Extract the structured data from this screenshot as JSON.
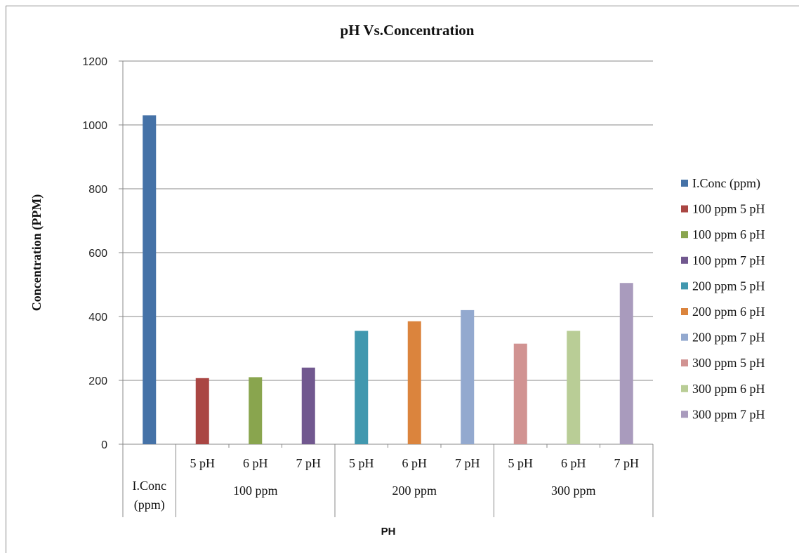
{
  "chart_data": {
    "type": "bar",
    "title": "pH Vs.Concentration",
    "xlabel": "PH",
    "ylabel": "Concentration (PPM)",
    "ylim": [
      0,
      1200
    ],
    "yticks": [
      "0",
      "200",
      "400",
      "600",
      "800",
      "1000",
      "1200"
    ],
    "grid": true,
    "legend_position": "right",
    "groups": [
      {
        "label": "I.Conc\n(ppm)",
        "categories": [
          ""
        ]
      },
      {
        "label": "100 ppm",
        "categories": [
          "5 pH",
          "6 pH",
          "7 pH"
        ]
      },
      {
        "label": "200 ppm",
        "categories": [
          "5 pH",
          "6 pH",
          "7 pH"
        ]
      },
      {
        "label": "300 ppm",
        "categories": [
          "5 pH",
          "6 pH",
          "7 pH"
        ]
      }
    ],
    "series": [
      {
        "name": "I.Conc (ppm)",
        "value": 1030,
        "color": "#4572A7"
      },
      {
        "name": "100 ppm 5 pH",
        "value": 207,
        "color": "#AA4643"
      },
      {
        "name": "100 ppm 6 pH",
        "value": 210,
        "color": "#89A54E"
      },
      {
        "name": "100 ppm 7 pH",
        "value": 240,
        "color": "#71588F"
      },
      {
        "name": "200 ppm 5 pH",
        "value": 355,
        "color": "#4198AF"
      },
      {
        "name": "200 ppm 6 pH",
        "value": 385,
        "color": "#DB843D"
      },
      {
        "name": "200 ppm 7 pH",
        "value": 420,
        "color": "#93A9CF"
      },
      {
        "name": "300 ppm 5 pH",
        "value": 315,
        "color": "#D19392"
      },
      {
        "name": "300 ppm 6 pH",
        "value": 355,
        "color": "#B9CD96"
      },
      {
        "name": "300 ppm 7 pH",
        "value": 505,
        "color": "#A99BBD"
      }
    ]
  }
}
